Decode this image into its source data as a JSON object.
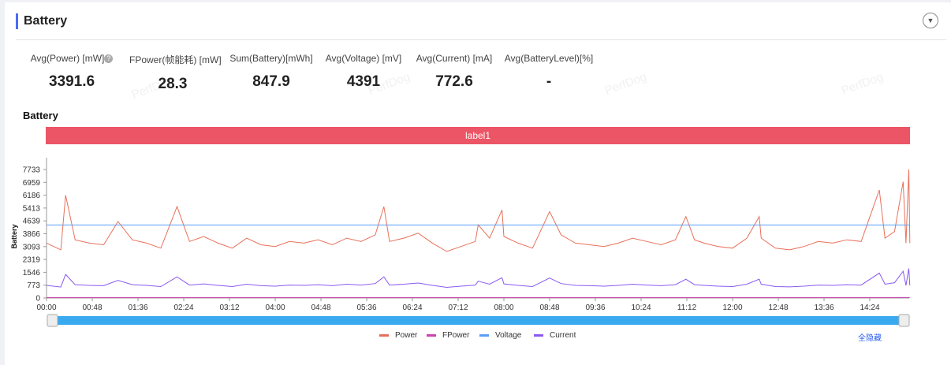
{
  "section": {
    "title": "Battery"
  },
  "stats": [
    {
      "label": "Avg(Power) [mW]",
      "value": "3391.6",
      "help": "?"
    },
    {
      "label": "FPower(帧能耗) [mW]",
      "value": "28.3"
    },
    {
      "label": "Sum(Battery)[mWh]",
      "value": "847.9"
    },
    {
      "label": "Avg(Voltage) [mV]",
      "value": "4391"
    },
    {
      "label": "Avg(Current) [mA]",
      "value": "772.6"
    },
    {
      "label": "Avg(BatteryLevel)[%]",
      "value": "-"
    }
  ],
  "watermark": "PerfDog",
  "hide_all_label": "全隐藏",
  "chart_data": {
    "type": "line",
    "title": "Battery",
    "ylabel": "Battery",
    "band_label": "label1",
    "ylim": [
      0,
      8000
    ],
    "yticks": [
      "0",
      "773",
      "1546",
      "2319",
      "3093",
      "3866",
      "4639",
      "5413",
      "6186",
      "6959",
      "7733"
    ],
    "xticks": [
      "00:00",
      "00:48",
      "01:36",
      "02:24",
      "03:12",
      "04:00",
      "04:48",
      "05:36",
      "06:24",
      "07:12",
      "08:00",
      "08:48",
      "09:36",
      "10:24",
      "11:12",
      "12:00",
      "12:48",
      "13:36",
      "14:24"
    ],
    "x": [
      "00:00",
      "00:15",
      "00:20",
      "00:30",
      "00:45",
      "01:00",
      "01:15",
      "01:30",
      "01:45",
      "02:00",
      "02:17",
      "02:30",
      "02:45",
      "03:00",
      "03:15",
      "03:30",
      "03:45",
      "04:00",
      "04:15",
      "04:30",
      "04:45",
      "05:00",
      "05:15",
      "05:30",
      "05:45",
      "05:54",
      "06:00",
      "06:15",
      "06:30",
      "06:45",
      "07:00",
      "07:15",
      "07:30",
      "07:33",
      "07:45",
      "07:58",
      "08:00",
      "08:15",
      "08:30",
      "08:48",
      "09:00",
      "09:15",
      "09:30",
      "09:45",
      "10:00",
      "10:15",
      "10:30",
      "10:45",
      "11:00",
      "11:11",
      "11:20",
      "11:30",
      "11:45",
      "12:00",
      "12:15",
      "12:28",
      "12:30",
      "12:45",
      "13:00",
      "13:15",
      "13:30",
      "13:45",
      "14:00",
      "14:15",
      "14:34",
      "14:40",
      "14:50",
      "14:59",
      "15:02",
      "15:05",
      "15:06"
    ],
    "series": [
      {
        "name": "Power",
        "color": "#e8705a",
        "values": [
          3300,
          2900,
          6186,
          3500,
          3300,
          3200,
          4600,
          3500,
          3300,
          3000,
          5500,
          3400,
          3700,
          3300,
          3000,
          3600,
          3200,
          3100,
          3400,
          3300,
          3500,
          3200,
          3600,
          3400,
          3800,
          5500,
          3400,
          3600,
          3900,
          3300,
          2800,
          3100,
          3400,
          4400,
          3600,
          5300,
          3700,
          3300,
          3000,
          5200,
          3800,
          3300,
          3200,
          3100,
          3300,
          3600,
          3400,
          3200,
          3500,
          4900,
          3500,
          3300,
          3100,
          3000,
          3600,
          4900,
          3600,
          3000,
          2900,
          3100,
          3400,
          3300,
          3500,
          3400,
          6500,
          3600,
          4000,
          7000,
          3300,
          7733,
          3300
        ]
      },
      {
        "name": "FPower",
        "color": "#d040b0",
        "values": [
          28,
          28,
          28,
          28,
          28,
          28,
          28,
          28,
          28,
          28,
          28,
          28,
          28,
          28,
          28,
          28,
          28,
          28,
          28,
          28,
          28,
          28,
          28,
          28,
          28,
          28,
          28,
          28,
          28,
          28,
          28,
          28,
          28,
          28,
          28,
          28,
          28,
          28,
          28,
          28,
          28,
          28,
          28,
          28,
          28,
          28,
          28,
          28,
          28,
          28,
          28,
          28,
          28,
          28,
          28,
          28,
          28,
          28,
          28,
          28,
          28,
          28,
          28,
          28,
          28,
          28,
          28,
          28,
          28,
          28,
          28
        ]
      },
      {
        "name": "Voltage",
        "color": "#5a9ef5",
        "values": [
          4391,
          4391,
          4391,
          4391,
          4391,
          4391,
          4391,
          4391,
          4391,
          4391,
          4391,
          4391,
          4391,
          4391,
          4391,
          4391,
          4391,
          4391,
          4391,
          4391,
          4391,
          4391,
          4391,
          4391,
          4391,
          4391,
          4391,
          4391,
          4391,
          4391,
          4391,
          4391,
          4391,
          4391,
          4391,
          4391,
          4391,
          4391,
          4391,
          4391,
          4391,
          4391,
          4391,
          4391,
          4391,
          4391,
          4391,
          4391,
          4391,
          4391,
          4391,
          4391,
          4391,
          4391,
          4391,
          4391,
          4391,
          4391,
          4391,
          4391,
          4391,
          4391,
          4391,
          4391,
          4391,
          4391,
          4391,
          4391,
          4391,
          4391,
          4391
        ]
      },
      {
        "name": "Current",
        "color": "#8a5af0",
        "values": [
          760,
          660,
          1420,
          800,
          760,
          740,
          1060,
          800,
          760,
          690,
          1270,
          780,
          850,
          760,
          690,
          830,
          740,
          710,
          780,
          760,
          800,
          740,
          830,
          780,
          870,
          1270,
          780,
          830,
          900,
          760,
          640,
          710,
          780,
          1010,
          830,
          1220,
          850,
          760,
          690,
          1200,
          870,
          760,
          740,
          710,
          760,
          830,
          780,
          740,
          800,
          1130,
          800,
          760,
          710,
          690,
          830,
          1130,
          830,
          690,
          670,
          710,
          780,
          760,
          800,
          780,
          1500,
          830,
          920,
          1610,
          760,
          1780,
          760
        ]
      }
    ],
    "legend": "bottom-center"
  }
}
